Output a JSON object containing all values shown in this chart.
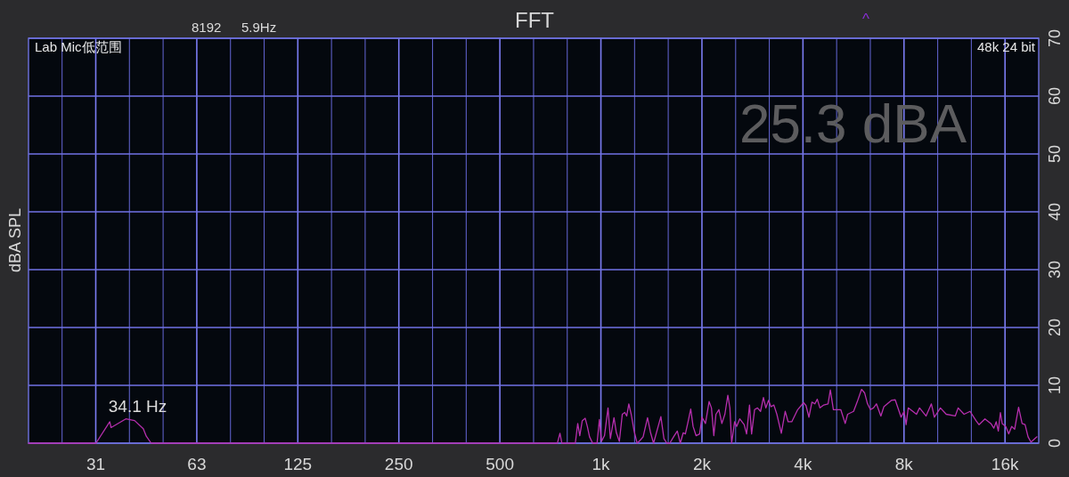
{
  "chart_data": {
    "type": "line",
    "title": "FFT",
    "ylabel": "dBA SPL",
    "annotations": [
      "8192",
      "5.9Hz",
      "^",
      "Lab Mic低范围",
      "48k 24 bit",
      "25.3 dBA",
      {
        "text": "34.1 Hz",
        "x": 34.1,
        "y": 4.2
      }
    ],
    "log": "x",
    "xlim": [
      19.7,
      20160
    ],
    "xticks": [
      {
        "value": 24.8,
        "label": null
      },
      {
        "value": 31.25,
        "label": "31"
      },
      {
        "value": 39.37,
        "label": null
      },
      {
        "value": 49.61,
        "label": null
      },
      {
        "value": 62.5,
        "label": "63"
      },
      {
        "value": 78.75,
        "label": null
      },
      {
        "value": 99.21,
        "label": null
      },
      125,
      {
        "value": 157.5,
        "label": null
      },
      {
        "value": 198.4,
        "label": null
      },
      250,
      {
        "value": 315,
        "label": null
      },
      {
        "value": 396.9,
        "label": null
      },
      500,
      {
        "value": 630,
        "label": null
      },
      {
        "value": 793.7,
        "label": null
      },
      {
        "value": 1000,
        "label": "1k"
      },
      {
        "value": 1260,
        "label": null
      },
      {
        "value": 1587,
        "label": null
      },
      {
        "value": 2000,
        "label": "2k"
      },
      {
        "value": 2520,
        "label": null
      },
      {
        "value": 3175,
        "label": null
      },
      {
        "value": 4000,
        "label": "4k"
      },
      {
        "value": 5040,
        "label": null
      },
      {
        "value": 6350,
        "label": null
      },
      {
        "value": 8000,
        "label": "8k"
      },
      {
        "value": 10080,
        "label": null
      },
      {
        "value": 12700,
        "label": null
      },
      {
        "value": 16000,
        "label": "16k"
      }
    ],
    "ylim": [
      0,
      70
    ],
    "yticks": [
      0,
      10,
      20,
      30,
      40,
      50,
      60,
      70
    ],
    "grid": true,
    "line_style": "solid",
    "series": [
      {
        "color": "#b62fae",
        "x": [
          19.7,
          31.3,
          34.4,
          34.7,
          38.4,
          40.8,
          43.3,
          44.2,
          45.7,
          742,
          755,
          765,
          839,
          853,
          865,
          880,
          898,
          911,
          925,
          945,
          974,
          990,
          1004,
          1025,
          1050,
          1067,
          1094,
          1112,
          1135,
          1158,
          1178,
          1194,
          1211,
          1231,
          1256,
          1282,
          1309,
          1336,
          1377,
          1406,
          1435,
          1509,
          1541,
          1572,
          1604,
          1654,
          1689,
          1724,
          1759,
          1785,
          1814,
          1852,
          1882,
          1921,
          1968,
          2000,
          2049,
          2101,
          2135,
          2170,
          2202,
          2247,
          2293,
          2341,
          2389,
          2423,
          2452,
          2503,
          2538,
          2592,
          2672,
          2717,
          2772,
          2812,
          2870,
          2928,
          2990,
          3050,
          3101,
          3158,
          3211,
          3276,
          3344,
          3448,
          3541,
          3613,
          3704,
          3858,
          4017,
          4084,
          4167,
          4254,
          4341,
          4413,
          4494,
          4615,
          4751,
          4827,
          4928,
          5184,
          5344,
          5434,
          5661,
          5800,
          5980,
          6105,
          6229,
          6356,
          6489,
          6622,
          6826,
          6969,
          7332,
          7531,
          7842,
          8005,
          8118,
          8237,
          8717,
          8900,
          9305,
          9653,
          9856,
          10270,
          10690,
          11370,
          11600,
          12080,
          12590,
          13110,
          13380,
          13940,
          14520,
          14820,
          15060,
          15280,
          15500,
          15690,
          16080,
          16410,
          16750,
          17090,
          17560,
          17990,
          18360,
          18740,
          19120,
          19920
        ],
        "values": [
          0,
          0,
          3.7,
          2.7,
          4.2,
          3.9,
          2.5,
          1.2,
          0,
          0,
          1.7,
          0,
          0,
          3.4,
          1.3,
          3.9,
          4.3,
          2.9,
          1.1,
          0,
          0,
          4.1,
          0.3,
          1.3,
          6.1,
          0.8,
          4.4,
          1.8,
          0.3,
          5.0,
          5.3,
          4.7,
          6.8,
          5.0,
          2.1,
          0,
          0.5,
          1.1,
          4.4,
          1.8,
          0,
          4.6,
          0.8,
          0,
          0,
          1.3,
          2.1,
          0,
          1.8,
          1.6,
          3.4,
          5.9,
          2.9,
          1.3,
          1.6,
          4.5,
          3.4,
          7.2,
          6.1,
          1.3,
          5.0,
          5.8,
          3.4,
          5.0,
          8.3,
          6.1,
          0,
          3.7,
          2.9,
          4.2,
          3.2,
          1.6,
          6.6,
          1.6,
          5.8,
          6.1,
          5.5,
          7.9,
          6.1,
          7.4,
          6.3,
          6.6,
          5.0,
          1.7,
          5.5,
          3.7,
          3.7,
          5.8,
          7.0,
          6.5,
          4.5,
          7.1,
          6.8,
          7.6,
          6.1,
          6.6,
          6.8,
          9.2,
          5.8,
          5.8,
          3.4,
          5.0,
          5.5,
          7.1,
          9.3,
          8.7,
          6.8,
          5.8,
          6.1,
          6.8,
          4.7,
          6.3,
          7.4,
          7.5,
          4.5,
          5.5,
          3.2,
          6.1,
          5.0,
          6.1,
          4.7,
          6.8,
          4.5,
          6.1,
          5.0,
          4.7,
          6.1,
          5.0,
          5.5,
          3.9,
          3.2,
          4.2,
          3.4,
          2.6,
          3.7,
          2.1,
          5.3,
          3.4,
          2.9,
          1.6,
          2.9,
          2.4,
          6.2,
          3.4,
          3.2,
          1.1,
          0.2,
          1.1
        ]
      }
    ]
  }
}
